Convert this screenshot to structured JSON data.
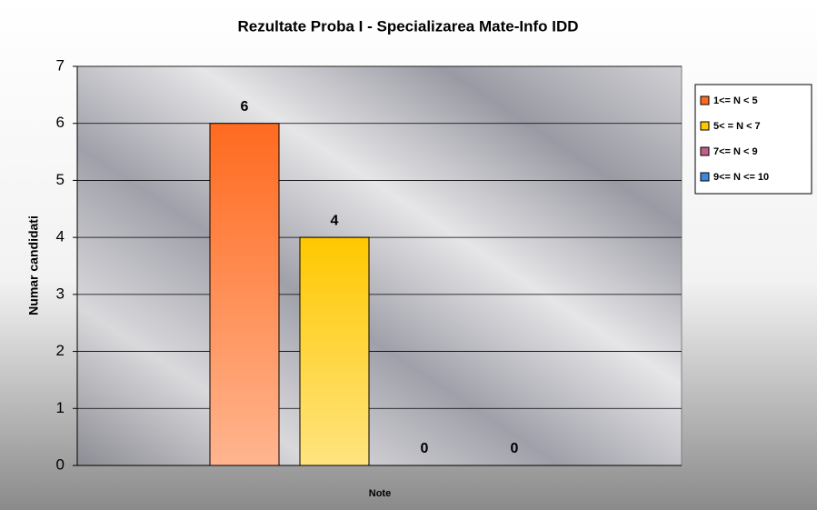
{
  "chart_data": {
    "type": "bar",
    "title": "Rezultate Proba I - Specializarea Mate-Info IDD",
    "x_label": "Note",
    "y_label": "Numar candidati",
    "categories": [
      null
    ],
    "series": [
      {
        "name": "1<= N < 5",
        "color": "#ff6a1f",
        "values": [
          6
        ]
      },
      {
        "name": "5< = N < 7",
        "color": "#ffc800",
        "values": [
          4
        ]
      },
      {
        "name": "7<= N < 9",
        "color": "#c0608a",
        "values": [
          0
        ]
      },
      {
        "name": "9<= N <= 10",
        "color": "#3f86e0",
        "values": [
          0
        ]
      }
    ],
    "ylim": [
      0,
      7
    ],
    "yticks": [
      0,
      1,
      2,
      3,
      4,
      5,
      6,
      7
    ],
    "grid": true,
    "legend": "right",
    "data_labels": true
  }
}
